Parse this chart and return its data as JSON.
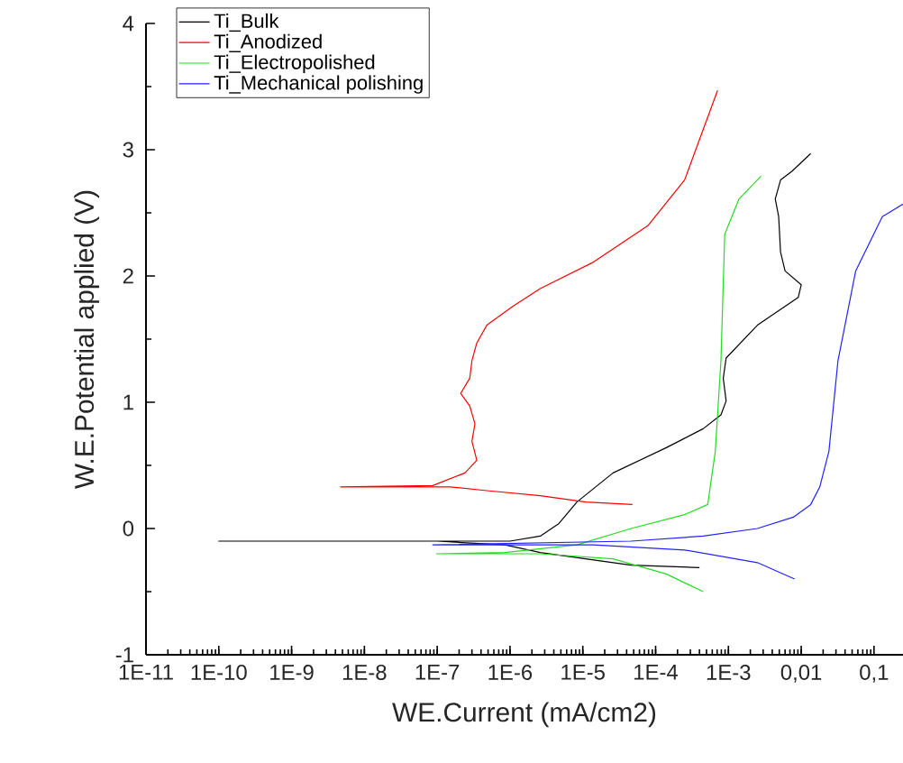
{
  "chart_data": {
    "type": "line",
    "xlabel": "WE.Current (mA/cm2)",
    "ylabel": "W.E.Potential applied (V)",
    "log": "x",
    "legend": "top left",
    "xlim": [
      1e-11,
      0.25
    ],
    "ylim": [
      -1,
      4
    ],
    "xticks": [
      {
        "value": 1e-11,
        "label": "1E-11"
      },
      {
        "value": 1e-10,
        "label": "1E-10"
      },
      {
        "value": 1e-09,
        "label": "1E-9"
      },
      {
        "value": 1e-08,
        "label": "1E-8"
      },
      {
        "value": 1e-07,
        "label": "1E-7"
      },
      {
        "value": 1e-06,
        "label": "1E-6"
      },
      {
        "value": 1e-05,
        "label": "1E-5"
      },
      {
        "value": 0.0001,
        "label": "1E-4"
      },
      {
        "value": 0.001,
        "label": "1E-3"
      },
      {
        "value": 0.01,
        "label": "0,01"
      },
      {
        "value": 0.1,
        "label": "0,1"
      }
    ],
    "yticks": [
      -1,
      0,
      1,
      2,
      3,
      4
    ],
    "series": [
      {
        "name": "Ti_Bulk",
        "color": "#000000",
        "x": [
          0.0004,
          4.6e-05,
          2.6e-06,
          8.5e-07,
          1e-07,
          1e-10,
          1e-07,
          1e-06,
          2.6e-06,
          4.7e-06,
          8.3e-06,
          2.6e-05,
          0.00014,
          0.00045,
          0.00079,
          0.00093,
          0.00085,
          0.00093,
          0.0025,
          0.0091,
          0.01,
          0.006,
          0.0052,
          0.0049,
          0.0044,
          0.0052,
          0.0075,
          0.0135
        ],
        "values": [
          -0.31,
          -0.29,
          -0.19,
          -0.13,
          -0.1,
          -0.1,
          -0.1,
          -0.1,
          -0.06,
          0.04,
          0.21,
          0.44,
          0.64,
          0.79,
          0.9,
          1.01,
          1.19,
          1.35,
          1.61,
          1.83,
          1.93,
          2.04,
          2.19,
          2.47,
          2.61,
          2.76,
          2.83,
          2.97
        ]
      },
      {
        "name": "Ti_Anodized",
        "color": "#ff0000",
        "x": [
          4.8e-05,
          1.1e-05,
          2.6e-06,
          4.8e-07,
          1.5e-07,
          4.7e-09,
          8.7e-08,
          2.4e-07,
          3.5e-07,
          3e-07,
          3.3e-07,
          2.8e-07,
          2.1e-07,
          2.8e-07,
          3e-07,
          3.5e-07,
          4.8e-07,
          1.1e-06,
          2.6e-06,
          1.4e-05,
          7.9e-05,
          0.00025,
          0.00071
        ],
        "values": [
          0.19,
          0.21,
          0.26,
          0.3,
          0.33,
          0.33,
          0.34,
          0.44,
          0.54,
          0.69,
          0.83,
          0.97,
          1.07,
          1.19,
          1.33,
          1.47,
          1.61,
          1.76,
          1.9,
          2.11,
          2.4,
          2.76,
          3.47
        ]
      },
      {
        "name": "Ti_Electropolished",
        "color": "#22dd22",
        "x": [
          0.00045,
          0.00014,
          2.6e-05,
          2.6e-06,
          9.8e-08,
          8.5e-07,
          8.3e-06,
          4.6e-05,
          0.00025,
          0.00052,
          0.00066,
          0.00079,
          0.00089,
          0.0014,
          0.0028
        ],
        "values": [
          -0.5,
          -0.36,
          -0.24,
          -0.2,
          -0.2,
          -0.19,
          -0.13,
          0,
          0.11,
          0.19,
          0.61,
          1.33,
          2.33,
          2.61,
          2.79
        ]
      },
      {
        "name": "Ti_Mechanical polishing",
        "color": "#2222ff",
        "x": [
          0.0081,
          0.0025,
          0.00025,
          1.4e-05,
          8.7e-08,
          4.6e-05,
          0.00045,
          0.0025,
          0.0078,
          0.0135,
          0.018,
          0.024,
          0.032,
          0.056,
          0.13,
          0.25
        ],
        "values": [
          -0.4,
          -0.27,
          -0.17,
          -0.13,
          -0.13,
          -0.1,
          -0.06,
          0,
          0.09,
          0.19,
          0.33,
          0.61,
          1.33,
          2.04,
          2.47,
          2.57
        ]
      }
    ]
  }
}
